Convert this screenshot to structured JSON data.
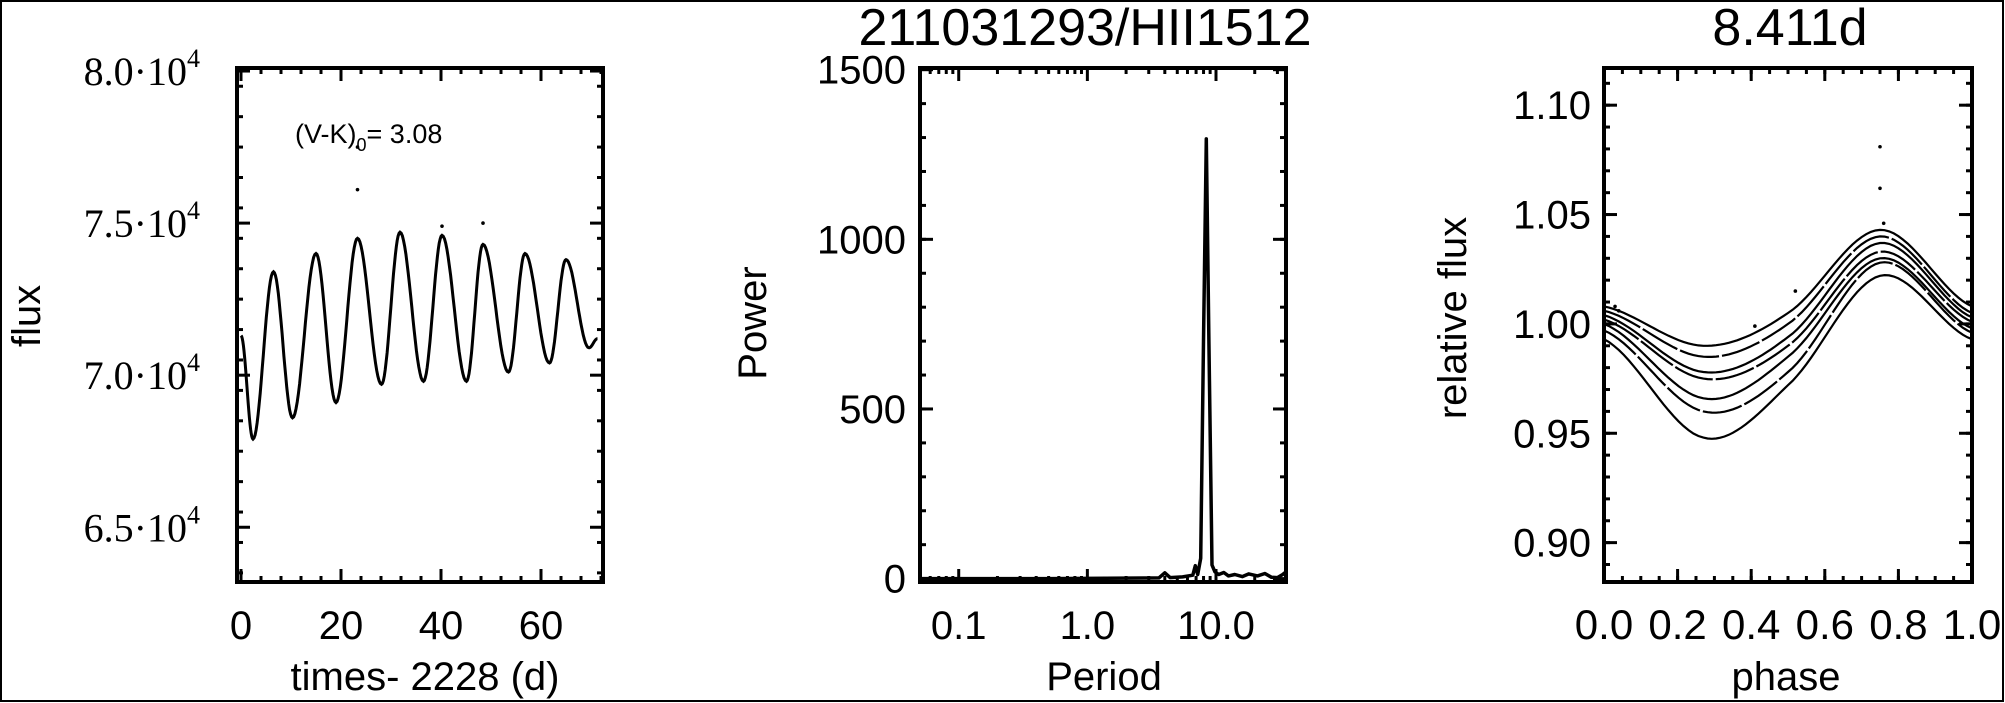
{
  "titles": {
    "center": "211031293/HII1512",
    "right": "8.411d"
  },
  "colors": {
    "ink": "#000000",
    "background": "#ffffff"
  },
  "chart_data": [
    {
      "type": "line",
      "panel": "light-curve",
      "xlabel": "times- 2228 (d)",
      "ylabel": "flux",
      "annotation": {
        "text": "(V-K)",
        "subscript": "0",
        "suffix": "= 3.08"
      },
      "xlim": [
        -0.8,
        72.4
      ],
      "ylim": [
        63200,
        80100
      ],
      "xticks": [
        0,
        20,
        40,
        60
      ],
      "xtick_labels": [
        "0",
        "20",
        "40",
        "60"
      ],
      "yticks": [
        65000,
        70000,
        75000,
        80000
      ],
      "ytick_labels": [
        {
          "base": "6.5·10",
          "exp": "4"
        },
        {
          "base": "7.0·10",
          "exp": "4"
        },
        {
          "base": "7.5·10",
          "exp": "4"
        },
        {
          "base": "8.0·10",
          "exp": "4"
        }
      ],
      "grid": false,
      "x": [
        0,
        2.4,
        6.5,
        10.3,
        15.0,
        19.0,
        23.3,
        28.1,
        31.8,
        36.5,
        40.2,
        45.1,
        48.4,
        53.5,
        56.8,
        61.7,
        65.0,
        69.6,
        71.3
      ],
      "y": [
        71300,
        67900,
        73400,
        68600,
        74000,
        69100,
        74500,
        69700,
        74700,
        69800,
        74600,
        69800,
        74300,
        70100,
        74000,
        70400,
        73800,
        70900,
        71200
      ],
      "outliers": {
        "x": [
          23.3,
          23.3,
          40.2,
          48.4
        ],
        "y": [
          76100,
          77500,
          74900,
          75000
        ]
      }
    },
    {
      "type": "line",
      "panel": "periodogram",
      "xlabel": "Period",
      "ylabel": "Power",
      "xscale": "log",
      "xlim": [
        0.05,
        35
      ],
      "ylim": [
        -10,
        1505
      ],
      "xticks": [
        0.1,
        1.0,
        10.0
      ],
      "xtick_labels": [
        "0.1",
        "1.0",
        "10.0"
      ],
      "yticks": [
        0,
        500,
        1000,
        1500
      ],
      "ytick_labels": [
        "0",
        "500",
        "1000",
        "1500"
      ],
      "grid": false,
      "x": [
        0.05,
        0.5,
        3.6,
        4.0,
        4.4,
        5.5,
        6.6,
        6.9,
        7.2,
        7.6,
        8.0,
        8.4,
        8.8,
        9.3,
        9.8,
        10.5,
        11.5,
        12.5,
        14,
        16,
        18,
        21,
        24,
        27,
        30,
        33,
        35
      ],
      "y": [
        0,
        0,
        2,
        17,
        3,
        5,
        10,
        38,
        12,
        60,
        700,
        1296,
        700,
        40,
        20,
        12,
        18,
        8,
        12,
        6,
        14,
        8,
        15,
        4,
        3,
        12,
        20
      ]
    },
    {
      "type": "line",
      "panel": "phase-folded",
      "xlabel": "phase",
      "ylabel": "relative flux",
      "xlim": [
        0,
        1
      ],
      "ylim": [
        0.882,
        1.117
      ],
      "xticks": [
        0,
        0.2,
        0.4,
        0.6,
        0.8,
        1.0
      ],
      "xtick_labels": [
        "0.0",
        "0.2",
        "0.4",
        "0.6",
        "0.8",
        "1.0"
      ],
      "yticks": [
        0.9,
        0.95,
        1.0,
        1.05,
        1.1
      ],
      "ytick_labels": [
        "0.90",
        "0.95",
        "1.00",
        "1.05",
        "1.10"
      ],
      "grid": false,
      "phase": [
        0,
        0.27,
        0.5,
        0.75,
        1.0
      ],
      "series": [
        {
          "values": [
            1.008,
            0.99,
            1.005,
            1.043,
            1.008
          ]
        },
        {
          "values": [
            1.006,
            0.985,
            1.0,
            1.04,
            1.005
          ]
        },
        {
          "values": [
            1.004,
            0.978,
            0.994,
            1.037,
            1.003
          ]
        },
        {
          "values": [
            1.002,
            0.975,
            0.99,
            1.033,
            1.001
          ]
        },
        {
          "values": [
            1.0,
            0.966,
            0.985,
            1.03,
            0.998
          ]
        },
        {
          "values": [
            0.997,
            0.96,
            0.978,
            1.028,
            0.996
          ]
        },
        {
          "values": [
            0.993,
            0.948,
            0.972,
            1.022,
            0.993
          ]
        }
      ],
      "outliers": {
        "x": [
          0.75,
          0.75,
          0.76,
          0.03,
          0.04,
          0.41,
          0.52
        ],
        "y": [
          1.081,
          1.062,
          1.046,
          1.008,
          1.006,
          0.999,
          1.015
        ]
      }
    }
  ]
}
